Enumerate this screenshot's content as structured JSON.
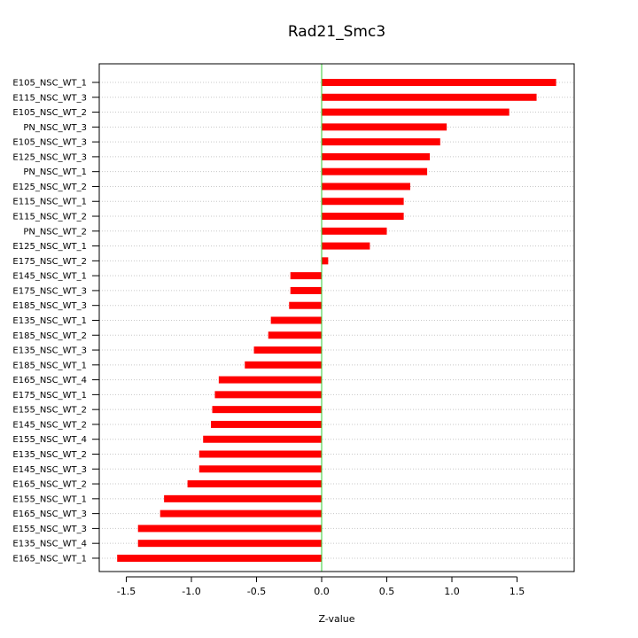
{
  "chart_data": {
    "type": "bar",
    "orientation": "horizontal",
    "title": "Rad21_Smc3",
    "xlabel": "Z-value",
    "ylabel": "",
    "xlim": [
      -1.6,
      1.85
    ],
    "x_ticks": [
      -1.5,
      -1.0,
      -0.5,
      0.0,
      0.5,
      1.0,
      1.5
    ],
    "x_tick_labels": [
      "-1.5",
      "-1.0",
      "-0.5",
      "0.0",
      "0.5",
      "1.0",
      "1.5"
    ],
    "grid": "horizontal dotted",
    "reference_line": {
      "x": 0,
      "color": "#33cc33"
    },
    "bar_color": "#ff0000",
    "categories": [
      "E105_NSC_WT_1",
      "E115_NSC_WT_3",
      "E105_NSC_WT_2",
      "PN_NSC_WT_3",
      "E105_NSC_WT_3",
      "E125_NSC_WT_3",
      "PN_NSC_WT_1",
      "E125_NSC_WT_2",
      "E115_NSC_WT_1",
      "E115_NSC_WT_2",
      "PN_NSC_WT_2",
      "E125_NSC_WT_1",
      "E175_NSC_WT_2",
      "E145_NSC_WT_1",
      "E175_NSC_WT_3",
      "E185_NSC_WT_3",
      "E135_NSC_WT_1",
      "E185_NSC_WT_2",
      "E135_NSC_WT_3",
      "E185_NSC_WT_1",
      "E165_NSC_WT_4",
      "E175_NSC_WT_1",
      "E155_NSC_WT_2",
      "E145_NSC_WT_2",
      "E155_NSC_WT_4",
      "E135_NSC_WT_2",
      "E145_NSC_WT_3",
      "E165_NSC_WT_2",
      "E155_NSC_WT_1",
      "E165_NSC_WT_3",
      "E155_NSC_WT_3",
      "E135_NSC_WT_4",
      "E165_NSC_WT_1"
    ],
    "values": [
      1.8,
      1.65,
      1.44,
      0.96,
      0.91,
      0.83,
      0.81,
      0.68,
      0.63,
      0.63,
      0.5,
      0.37,
      0.05,
      -0.24,
      -0.24,
      -0.25,
      -0.39,
      -0.41,
      -0.52,
      -0.59,
      -0.79,
      -0.82,
      -0.84,
      -0.85,
      -0.91,
      -0.94,
      -0.94,
      -1.03,
      -1.21,
      -1.24,
      -1.41,
      -1.41,
      -1.57
    ]
  }
}
